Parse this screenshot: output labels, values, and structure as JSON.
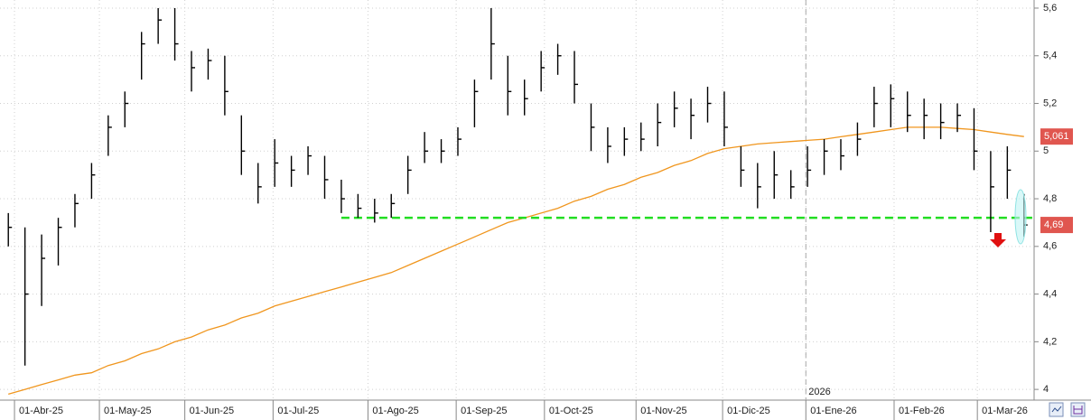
{
  "chart_data": {
    "type": "ohlc",
    "xlim": [
      -0.5,
      61.5
    ],
    "ylim": [
      3.955,
      5.634
    ],
    "xticks": [
      {
        "value": 0.37,
        "label": "01-Abr-25"
      },
      {
        "value": 5.47,
        "label": "01-May-25"
      },
      {
        "value": 10.6,
        "label": "01-Jun-25"
      },
      {
        "value": 15.9,
        "label": "01-Jul-25"
      },
      {
        "value": 21.6,
        "label": "01-Ago-25"
      },
      {
        "value": 26.9,
        "label": "01-Sep-25"
      },
      {
        "value": 32.2,
        "label": "01-Oct-25"
      },
      {
        "value": 37.7,
        "label": "01-Nov-25"
      },
      {
        "value": 42.9,
        "label": "01-Dic-25"
      },
      {
        "value": 47.9,
        "label": "01-Ene-26"
      },
      {
        "value": 53.2,
        "label": "01-Feb-26"
      },
      {
        "value": 58.2,
        "label": "01-Mar-26"
      }
    ],
    "yticks": [
      {
        "value": 5.6,
        "label": "5,6"
      },
      {
        "value": 5.4,
        "label": "5,4"
      },
      {
        "value": 5.2,
        "label": "5,2"
      },
      5,
      {
        "value": 4.8,
        "label": "4,8"
      },
      {
        "value": 4.6,
        "label": "4,6"
      },
      {
        "value": 4.4,
        "label": "4,4"
      },
      {
        "value": 4.2,
        "label": "4,2"
      },
      4
    ],
    "grid": true,
    "color": "#000000",
    "high": [
      4.74,
      4.68,
      4.65,
      4.72,
      4.82,
      4.95,
      5.15,
      5.25,
      5.5,
      5.6,
      5.6,
      5.42,
      5.43,
      5.4,
      5.15,
      4.95,
      5.05,
      4.98,
      5.02,
      4.98,
      4.88,
      4.82,
      4.8,
      4.82,
      4.98,
      5.08,
      5.05,
      5.1,
      5.3,
      5.6,
      5.4,
      5.3,
      5.42,
      5.45,
      5.42,
      5.2,
      5.1,
      5.1,
      5.12,
      5.2,
      5.25,
      5.22,
      5.27,
      5.25,
      5.02,
      4.95,
      5.0,
      4.92,
      5.02,
      5.05,
      5.05,
      5.12,
      5.27,
      5.28,
      5.25,
      5.22,
      5.2,
      5.2,
      5.18,
      5.0,
      5.02,
      4.82
    ],
    "low": [
      4.6,
      4.1,
      4.35,
      4.52,
      4.68,
      4.8,
      4.98,
      5.1,
      5.3,
      5.45,
      5.38,
      5.25,
      5.3,
      5.15,
      4.9,
      4.78,
      4.85,
      4.85,
      4.9,
      4.8,
      4.74,
      4.72,
      4.7,
      4.72,
      4.82,
      4.95,
      4.95,
      4.98,
      5.1,
      5.3,
      5.15,
      5.15,
      5.25,
      5.32,
      5.2,
      5.0,
      4.95,
      4.98,
      5.0,
      5.02,
      5.1,
      5.05,
      5.12,
      5.02,
      4.85,
      4.76,
      4.8,
      4.8,
      4.85,
      4.9,
      4.92,
      4.98,
      5.1,
      5.1,
      5.08,
      5.05,
      5.05,
      5.08,
      4.92,
      4.66,
      4.8,
      4.64
    ],
    "close": [
      4.68,
      4.4,
      4.55,
      4.68,
      4.78,
      4.9,
      5.1,
      5.2,
      5.45,
      5.55,
      5.45,
      5.35,
      5.38,
      5.25,
      5.0,
      4.85,
      4.95,
      4.92,
      4.98,
      4.88,
      4.8,
      4.76,
      4.74,
      4.78,
      4.92,
      5.0,
      5.0,
      5.05,
      5.25,
      5.45,
      5.25,
      5.22,
      5.35,
      5.4,
      5.28,
      5.1,
      5.02,
      5.05,
      5.05,
      5.12,
      5.18,
      5.15,
      5.2,
      5.1,
      4.92,
      4.85,
      4.9,
      4.85,
      4.92,
      5.0,
      4.98,
      5.05,
      5.2,
      5.22,
      5.15,
      5.15,
      5.12,
      5.15,
      5.0,
      4.85,
      4.92,
      4.69
    ],
    "ma": {
      "color": "#f0961e",
      "values": [
        3.98,
        4.0,
        4.02,
        4.04,
        4.06,
        4.07,
        4.1,
        4.12,
        4.15,
        4.17,
        4.2,
        4.22,
        4.25,
        4.27,
        4.3,
        4.32,
        4.35,
        4.37,
        4.39,
        4.41,
        4.43,
        4.45,
        4.47,
        4.49,
        4.52,
        4.55,
        4.58,
        4.61,
        4.64,
        4.67,
        4.7,
        4.72,
        4.74,
        4.76,
        4.79,
        4.81,
        4.84,
        4.86,
        4.89,
        4.91,
        4.94,
        4.96,
        4.99,
        5.01,
        5.02,
        5.03,
        5.035,
        5.04,
        5.045,
        5.05,
        5.06,
        5.07,
        5.08,
        5.09,
        5.1,
        5.1,
        5.1,
        5.095,
        5.09,
        5.08,
        5.07,
        5.061
      ]
    },
    "support": {
      "value": 4.72,
      "color": "#22dd22"
    },
    "price_labels": [
      {
        "value": 5.061,
        "label": "5,061",
        "color": "#e0564f"
      },
      {
        "value": 4.69,
        "label": "4,69",
        "color": "#e0564f"
      }
    ],
    "year_marker": {
      "value": 47.9,
      "label": "2026"
    }
  }
}
